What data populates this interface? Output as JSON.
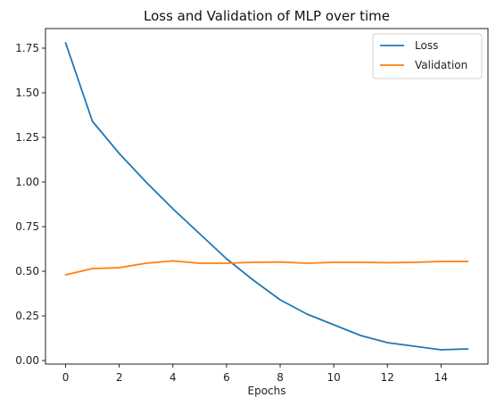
{
  "chart_data": {
    "type": "line",
    "title": "Loss and Validation of MLP over time",
    "xlabel": "Epochs",
    "ylabel": "",
    "xlim": [
      -0.75,
      15.75
    ],
    "ylim": [
      -0.02,
      1.86
    ],
    "xticks": [
      0,
      2,
      4,
      6,
      8,
      10,
      12,
      14
    ],
    "xtick_labels": [
      "0",
      "2",
      "4",
      "6",
      "8",
      "10",
      "12",
      "14"
    ],
    "yticks": [
      0.0,
      0.25,
      0.5,
      0.75,
      1.0,
      1.25,
      1.5,
      1.75
    ],
    "ytick_labels": [
      "0.00",
      "0.25",
      "0.50",
      "0.75",
      "1.00",
      "1.25",
      "1.50",
      "1.75"
    ],
    "grid": false,
    "legend_position": "top-right",
    "x": [
      0,
      1,
      2,
      3,
      4,
      5,
      6,
      7,
      8,
      9,
      10,
      11,
      12,
      13,
      14,
      15
    ],
    "series": [
      {
        "name": "Loss",
        "color": "#1f77b4",
        "values": [
          1.78,
          1.34,
          1.16,
          1.0,
          0.85,
          0.71,
          0.57,
          0.45,
          0.34,
          0.26,
          0.2,
          0.14,
          0.1,
          0.08,
          0.06,
          0.065
        ]
      },
      {
        "name": "Validation",
        "color": "#ff7f0e",
        "values": [
          0.48,
          0.515,
          0.52,
          0.545,
          0.558,
          0.545,
          0.545,
          0.55,
          0.552,
          0.545,
          0.55,
          0.55,
          0.548,
          0.55,
          0.555,
          0.555
        ]
      }
    ]
  }
}
